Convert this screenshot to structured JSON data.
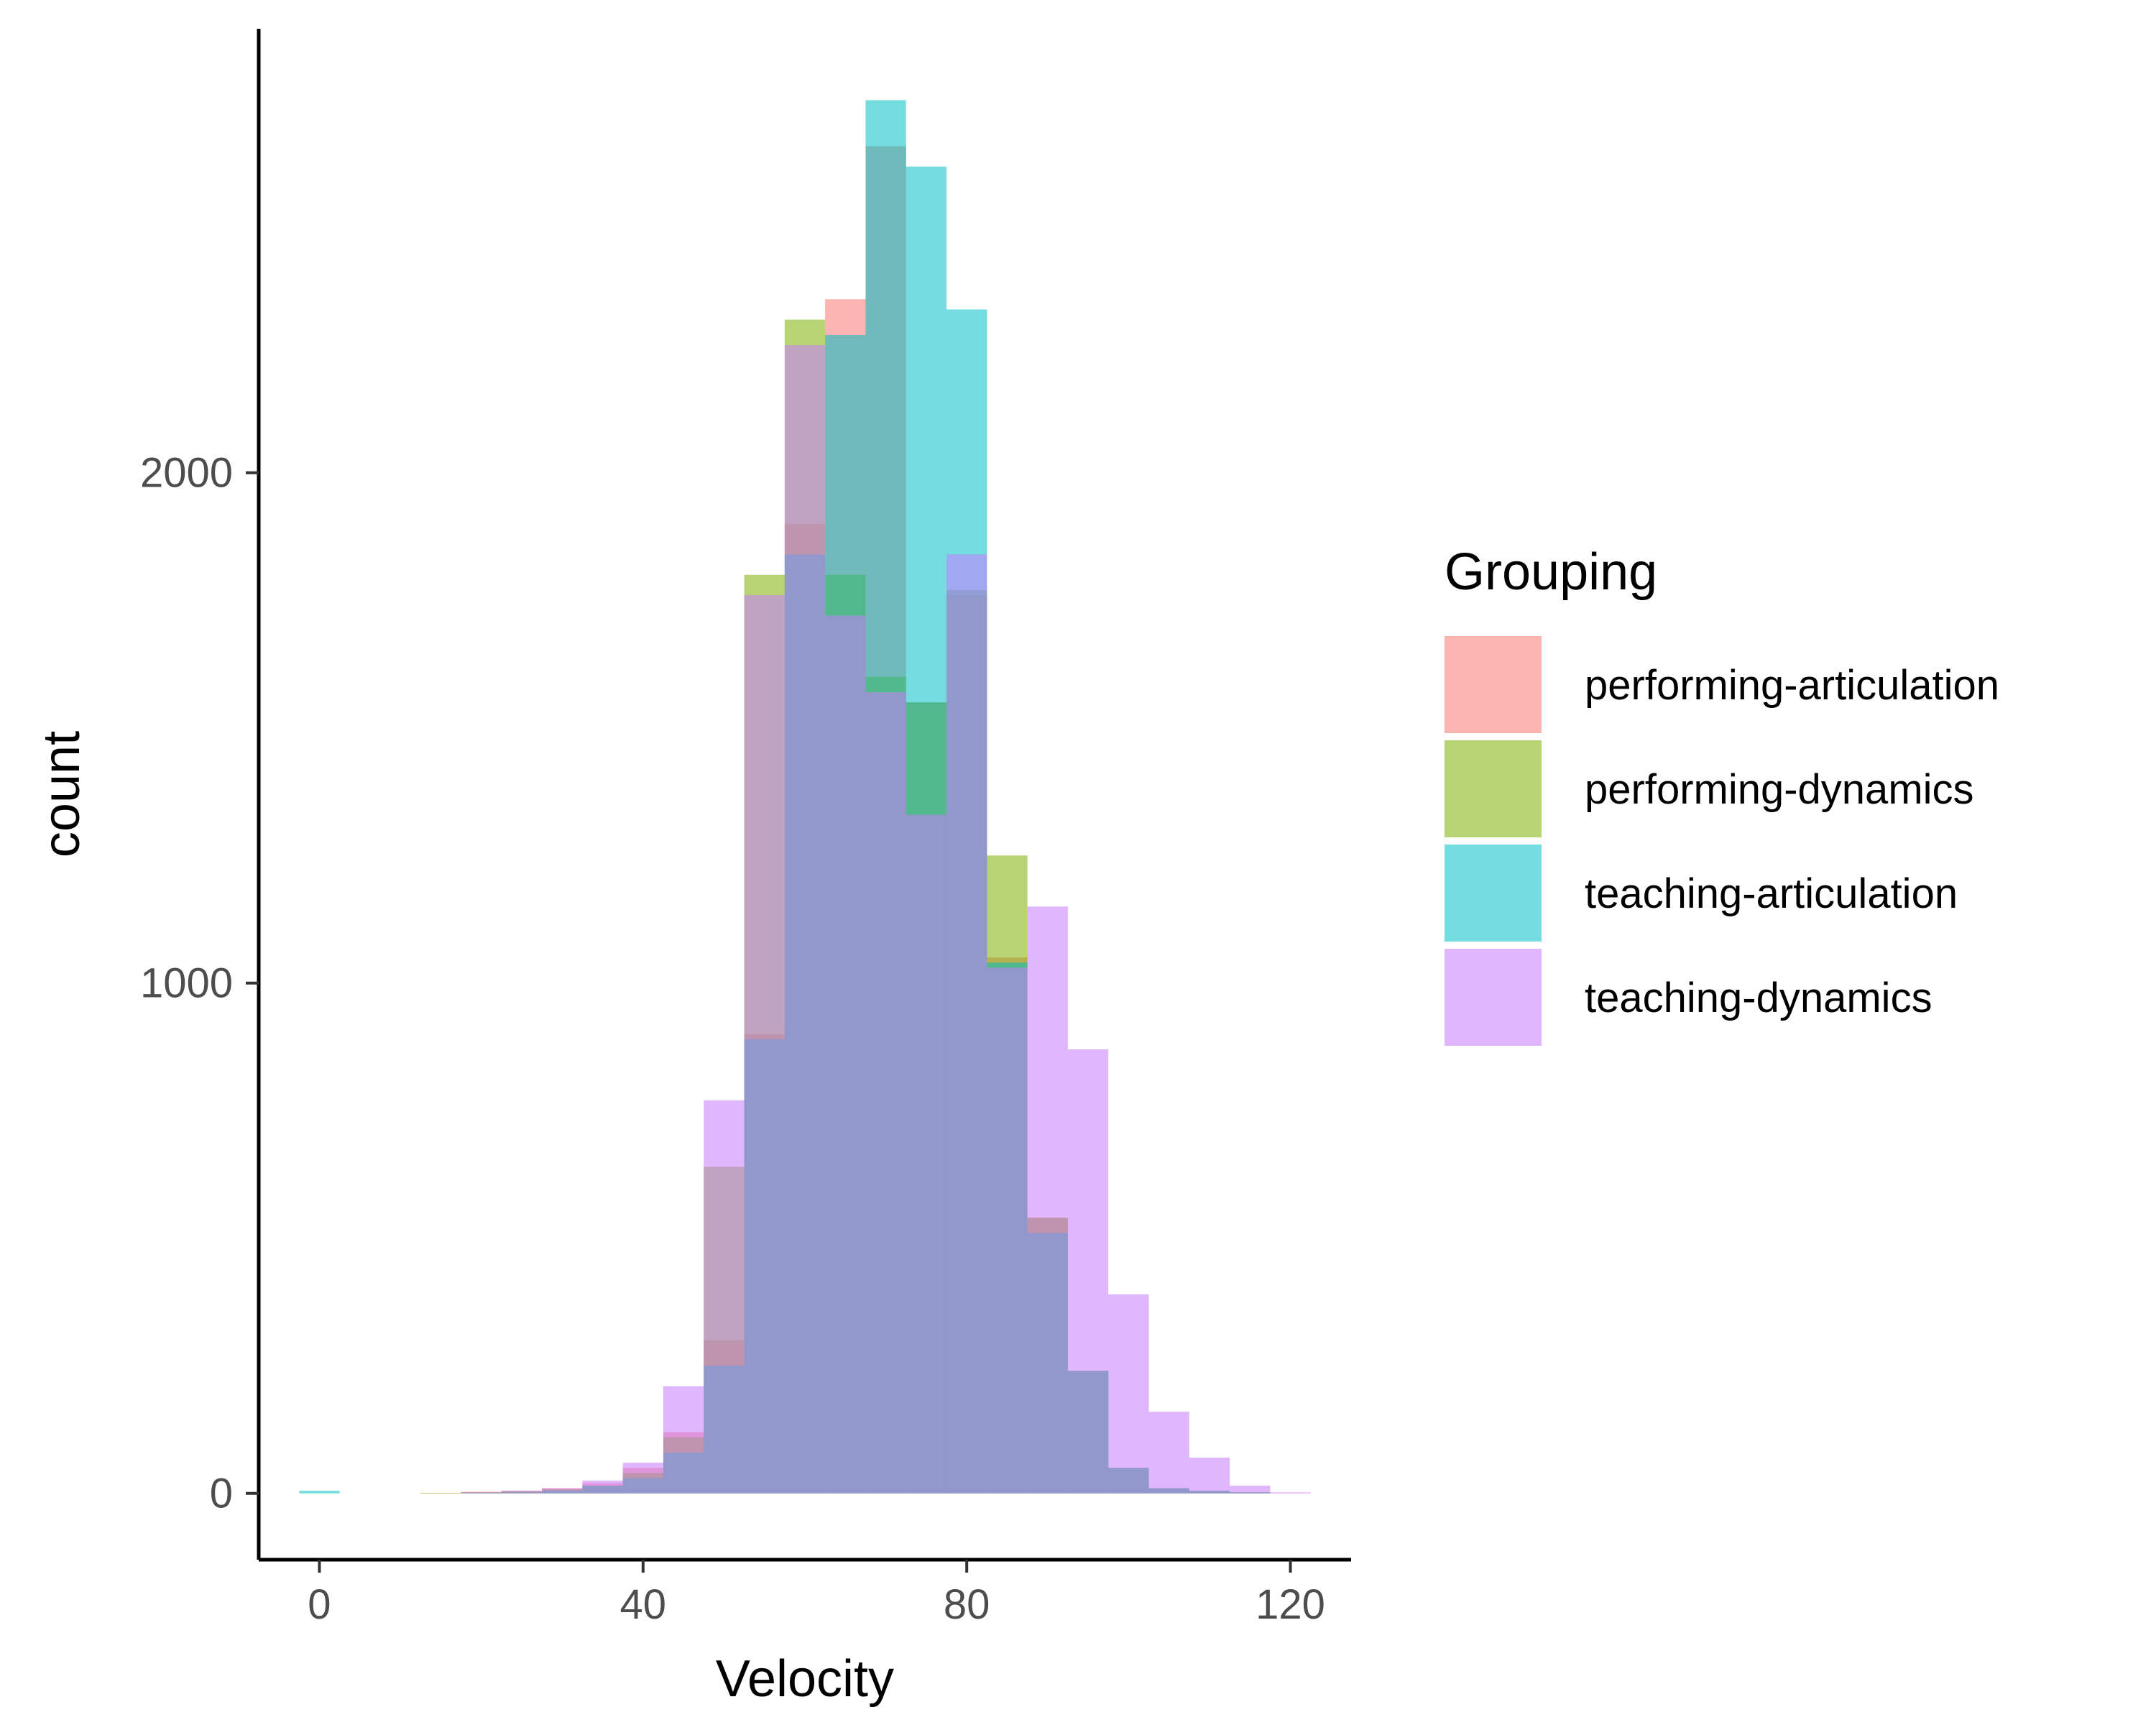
{
  "chart_data": {
    "type": "bar",
    "subtype": "overlaid-histogram",
    "xlabel": "Velocity",
    "ylabel": "count",
    "xlim": [
      -7.5,
      127.5
    ],
    "ylim": [
      -130,
      2870
    ],
    "x_ticks": [
      0,
      40,
      80,
      120
    ],
    "y_ticks": [
      0,
      1000,
      2000
    ],
    "grid": false,
    "bin_width": 5,
    "bin_centers": [
      0,
      5,
      10,
      15,
      20,
      25,
      30,
      35,
      40,
      45,
      50,
      55,
      60,
      65,
      70,
      75,
      80,
      85,
      90,
      95,
      100,
      105,
      110,
      115,
      120
    ],
    "legend": {
      "title": "Grouping",
      "placement": "right"
    },
    "fill_opacity": 0.55,
    "series": [
      {
        "name": "performing-articulation",
        "color": "#F8766D",
        "values": [
          0,
          0,
          0,
          1,
          3,
          5,
          10,
          20,
          50,
          120,
          300,
          900,
          1900,
          2340,
          2640,
          1550,
          1760,
          1050,
          540,
          240,
          50,
          10,
          5,
          2,
          0
        ]
      },
      {
        "name": "performing-dynamics",
        "color": "#7CAE00",
        "values": [
          0,
          0,
          0,
          1,
          2,
          4,
          8,
          15,
          40,
          110,
          640,
          1800,
          2300,
          1800,
          1600,
          1550,
          1770,
          1250,
          540,
          240,
          50,
          10,
          5,
          2,
          0
        ]
      },
      {
        "name": "teaching-articulation",
        "color": "#00BFC4",
        "values": [
          5,
          0,
          0,
          0,
          1,
          2,
          5,
          15,
          30,
          80,
          250,
          890,
          1840,
          2270,
          2730,
          2600,
          2320,
          1040,
          510,
          240,
          50,
          10,
          5,
          2,
          0
        ]
      },
      {
        "name": "teaching-dynamics",
        "color": "#C77CFF",
        "values": [
          0,
          0,
          0,
          0,
          2,
          5,
          10,
          25,
          60,
          210,
          770,
          1760,
          2250,
          1720,
          1570,
          1330,
          1840,
          1030,
          1150,
          870,
          390,
          160,
          70,
          15,
          2
        ]
      }
    ]
  }
}
